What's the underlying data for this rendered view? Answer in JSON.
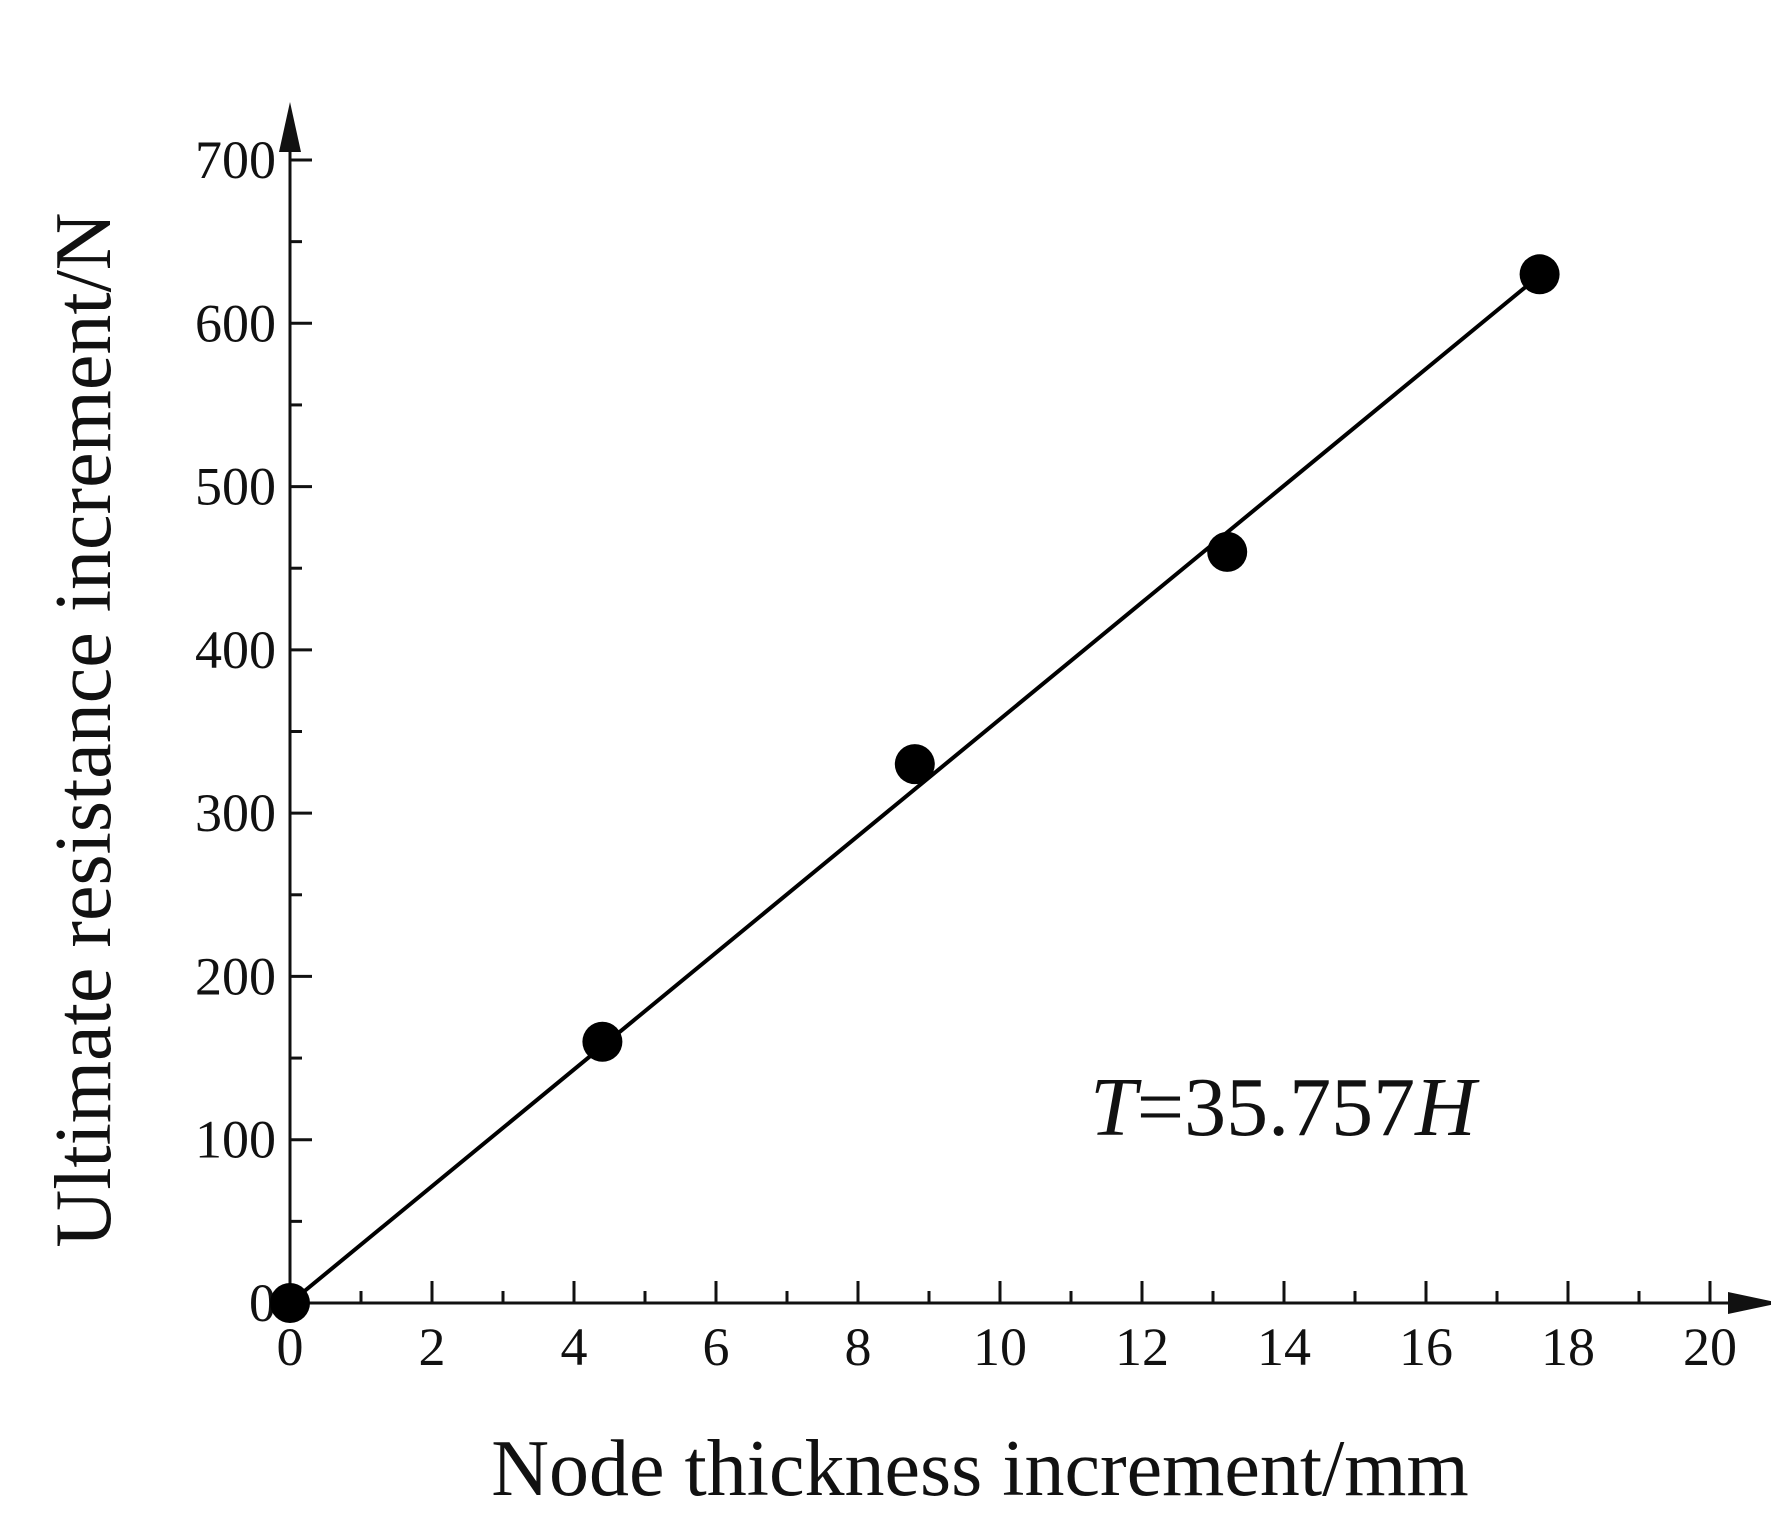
{
  "chart_data": {
    "type": "scatter",
    "title": "",
    "xlabel": "Node thickness increment/mm",
    "ylabel": "Ultimate resistance increment/N",
    "xlim": [
      0,
      20
    ],
    "ylim": [
      0,
      700
    ],
    "x_ticks": [
      "0",
      "2",
      "4",
      "6",
      "8",
      "10",
      "12",
      "14",
      "16",
      "18",
      "20"
    ],
    "y_ticks": [
      "0",
      "100",
      "200",
      "300",
      "400",
      "500",
      "600",
      "700"
    ],
    "grid": false,
    "legend": "none",
    "series": [
      {
        "type": "scatter",
        "x": [
          0,
          4.4,
          8.8,
          13.2,
          17.6
        ],
        "y": [
          0,
          160,
          330,
          460,
          630
        ],
        "color": "#000000"
      },
      {
        "type": "line",
        "x": [
          0,
          17.6
        ],
        "y": [
          0,
          629.3
        ],
        "color": "#000000"
      }
    ],
    "annotation": {
      "italic_1": "T",
      "middle": "=35.757",
      "italic_2": "H"
    }
  }
}
